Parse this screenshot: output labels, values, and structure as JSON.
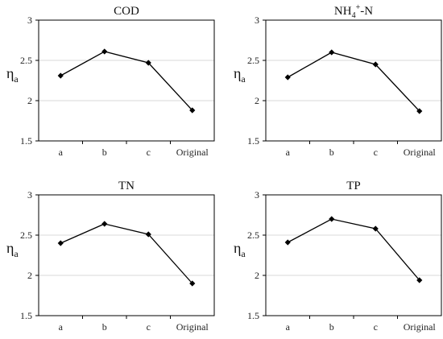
{
  "chart_data": [
    {
      "type": "line",
      "title": "COD",
      "ylabel": "η",
      "ylabel_sub": "a",
      "categories": [
        "a",
        "b",
        "c",
        "Original"
      ],
      "values": [
        2.31,
        2.61,
        2.47,
        1.88
      ],
      "ylim": [
        1.5,
        3
      ],
      "yticks": [
        "1.5",
        "2",
        "2.5",
        "3"
      ],
      "grid": true,
      "line_color": "#000000"
    },
    {
      "type": "line",
      "title": "NH4+-N",
      "title_parts": {
        "base": "NH",
        "sub": "4",
        "sup": "+",
        "rest": "-N"
      },
      "ylabel": "η",
      "ylabel_sub": "a",
      "categories": [
        "a",
        "b",
        "c",
        "Original"
      ],
      "values": [
        2.29,
        2.6,
        2.45,
        1.87
      ],
      "ylim": [
        1.5,
        3
      ],
      "yticks": [
        "1.5",
        "2",
        "2.5",
        "3"
      ],
      "grid": true,
      "line_color": "#000000"
    },
    {
      "type": "line",
      "title": "TN",
      "ylabel": "η",
      "ylabel_sub": "a",
      "categories": [
        "a",
        "b",
        "c",
        "Original"
      ],
      "values": [
        2.4,
        2.64,
        2.51,
        1.9
      ],
      "ylim": [
        1.5,
        3
      ],
      "yticks": [
        "1.5",
        "2",
        "2.5",
        "3"
      ],
      "grid": true,
      "line_color": "#000000"
    },
    {
      "type": "line",
      "title": "TP",
      "ylabel": "η",
      "ylabel_sub": "a",
      "categories": [
        "a",
        "b",
        "c",
        "Original"
      ],
      "values": [
        2.41,
        2.7,
        2.58,
        1.94
      ],
      "ylim": [
        1.5,
        3
      ],
      "yticks": [
        "1.5",
        "2",
        "2.5",
        "3"
      ],
      "grid": true,
      "line_color": "#000000"
    }
  ]
}
